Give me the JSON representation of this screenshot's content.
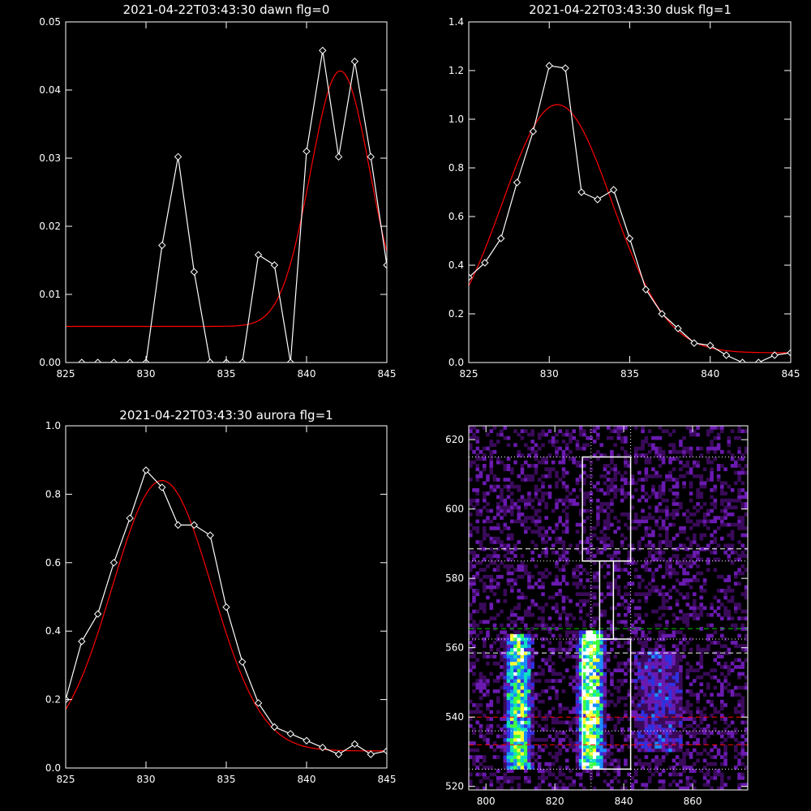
{
  "figure": {
    "background": "#000000",
    "axis_color": "#ffffff",
    "fit_color": "#ff0000",
    "data_color": "#ffffff"
  },
  "chart_data": [
    {
      "type": "line",
      "title": "2021-04-22T03:43:30 dawn flg=0",
      "xlim": [
        825,
        845
      ],
      "ylim": [
        0,
        0.05
      ],
      "xticks": [
        825,
        830,
        835,
        840,
        845
      ],
      "xticklabels": [
        "825",
        "830",
        "835",
        "840",
        "845"
      ],
      "yticks": [
        0,
        0.01,
        0.02,
        0.03,
        0.04,
        0.05
      ],
      "yticklabels": [
        "0.00",
        "0.01",
        "0.02",
        "0.03",
        "0.04",
        "0.05"
      ],
      "grid": false,
      "series": [
        {
          "role": "data",
          "marker": "diamond",
          "x": [
            826,
            827,
            828,
            829,
            830,
            831,
            832,
            833,
            834,
            835,
            836,
            837,
            838,
            839,
            840,
            841,
            842,
            843,
            844,
            845
          ],
          "y": [
            0,
            0,
            0,
            0,
            0,
            0.0172,
            0.0302,
            0.0133,
            0,
            0,
            0,
            0.0158,
            0.0143,
            0,
            0.031,
            0.0458,
            0.0302,
            0.0442,
            0.0302,
            0.0143
          ]
        },
        {
          "role": "fit",
          "shape": "gaussian",
          "baseline": 0.0053,
          "amplitude": 0.0375,
          "center": 842.1,
          "sigma": 1.85
        }
      ]
    },
    {
      "type": "line",
      "title": "2021-04-22T03:43:30 dusk flg=1",
      "xlim": [
        825,
        845
      ],
      "ylim": [
        0,
        1.4
      ],
      "xticks": [
        825,
        830,
        835,
        840,
        845
      ],
      "xticklabels": [
        "825",
        "830",
        "835",
        "840",
        "845"
      ],
      "yticks": [
        0,
        0.2,
        0.4,
        0.6,
        0.8,
        1.0,
        1.2,
        1.4
      ],
      "yticklabels": [
        "0.0",
        "0.2",
        "0.4",
        "0.6",
        "0.8",
        "1.0",
        "1.2",
        "1.4"
      ],
      "grid": false,
      "series": [
        {
          "role": "data",
          "marker": "diamond",
          "x": [
            825,
            826,
            827,
            828,
            829,
            830,
            831,
            832,
            833,
            834,
            835,
            836,
            837,
            838,
            839,
            840,
            841,
            842,
            843,
            844,
            845
          ],
          "y": [
            0.35,
            0.41,
            0.51,
            0.74,
            0.95,
            1.22,
            1.21,
            0.7,
            0.67,
            0.71,
            0.51,
            0.3,
            0.2,
            0.14,
            0.08,
            0.07,
            0.03,
            0.0,
            0.0,
            0.03,
            0.04
          ]
        },
        {
          "role": "fit",
          "shape": "gaussian",
          "baseline": 0.04,
          "amplitude": 1.02,
          "center": 830.5,
          "sigma": 3.4
        }
      ]
    },
    {
      "type": "line",
      "title": "2021-04-22T03:43:30 aurora flg=1",
      "xlim": [
        825,
        845
      ],
      "ylim": [
        0,
        1.0
      ],
      "xticks": [
        825,
        830,
        835,
        840,
        845
      ],
      "xticklabels": [
        "825",
        "830",
        "835",
        "840",
        "845"
      ],
      "yticks": [
        0,
        0.2,
        0.4,
        0.6,
        0.8,
        1.0
      ],
      "yticklabels": [
        "0.0",
        "0.2",
        "0.4",
        "0.6",
        "0.8",
        "1.0"
      ],
      "grid": false,
      "series": [
        {
          "role": "data",
          "marker": "diamond",
          "x": [
            825,
            826,
            827,
            828,
            829,
            830,
            831,
            832,
            833,
            834,
            835,
            836,
            837,
            838,
            839,
            840,
            841,
            842,
            843,
            844,
            845
          ],
          "y": [
            0.2,
            0.37,
            0.45,
            0.6,
            0.73,
            0.87,
            0.82,
            0.71,
            0.71,
            0.68,
            0.47,
            0.31,
            0.19,
            0.12,
            0.1,
            0.08,
            0.06,
            0.04,
            0.07,
            0.04,
            0.05
          ]
        },
        {
          "role": "fit",
          "shape": "gaussian",
          "baseline": 0.05,
          "amplitude": 0.79,
          "center": 831.0,
          "sigma": 3.1
        }
      ]
    },
    {
      "type": "heatmap",
      "title": "",
      "xlim": [
        795,
        876
      ],
      "ylim": [
        519,
        624
      ],
      "xticks": [
        800,
        820,
        840,
        860
      ],
      "xticklabels": [
        "800",
        "820",
        "840",
        "860"
      ],
      "yticks": [
        520,
        540,
        560,
        580,
        600,
        620
      ],
      "yticklabels": [
        "520",
        "540",
        "560",
        "580",
        "600",
        "620"
      ],
      "colormap": [
        "#000000",
        "#3a0a5a",
        "#6a1ab0",
        "#3030e0",
        "#1a8cff",
        "#10e0c0",
        "#40ff40",
        "#ffff30",
        "#ffffff"
      ],
      "emission_bands": [
        {
          "x_center": 809.5,
          "x_halfwidth": 3.5,
          "y_range": [
            525,
            563
          ],
          "peak": 0.7
        },
        {
          "x_center": 830.5,
          "x_halfwidth": 3.5,
          "y_range": [
            525,
            564
          ],
          "peak": 0.85
        },
        {
          "x_center": 850,
          "x_halfwidth": 7,
          "y_range": [
            530,
            558
          ],
          "peak": 0.25
        }
      ],
      "reference_lines": [
        {
          "orientation": "horizontal",
          "value": 615,
          "style": "dotted",
          "color": "#ffffff"
        },
        {
          "orientation": "horizontal",
          "value": 585,
          "style": "dotted",
          "color": "#ffffff"
        },
        {
          "orientation": "horizontal",
          "value": 562.5,
          "style": "dotted",
          "color": "#ffffff"
        },
        {
          "orientation": "horizontal",
          "value": 525,
          "style": "dotted",
          "color": "#ffffff"
        },
        {
          "orientation": "horizontal",
          "value": 536,
          "style": "dotted",
          "color": "#ffffff"
        },
        {
          "orientation": "horizontal",
          "value": 588.5,
          "style": "dashed",
          "color": "#ffffff"
        },
        {
          "orientation": "horizontal",
          "value": 558.5,
          "style": "dashed",
          "color": "#ffffff"
        },
        {
          "orientation": "horizontal",
          "value": 565.5,
          "style": "dashed",
          "color": "#00cc00"
        },
        {
          "orientation": "horizontal",
          "value": 540,
          "style": "dashed",
          "color": "#ff0000"
        },
        {
          "orientation": "horizontal",
          "value": 532,
          "style": "dashed",
          "color": "#ff0000"
        },
        {
          "orientation": "vertical",
          "value": 830.5,
          "style": "dotted",
          "color": "#ffffff"
        },
        {
          "orientation": "vertical",
          "value": 842,
          "style": "dotted",
          "color": "#ffffff"
        }
      ],
      "boxes": [
        {
          "x": [
            828,
            842
          ],
          "y": [
            585,
            615
          ],
          "color": "#ffffff"
        },
        {
          "x": [
            833,
            837
          ],
          "y": [
            562.5,
            585
          ],
          "color": "#ffffff"
        },
        {
          "x": [
            828,
            842
          ],
          "y": [
            525,
            562.5
          ],
          "color": "#ffffff"
        }
      ]
    }
  ]
}
